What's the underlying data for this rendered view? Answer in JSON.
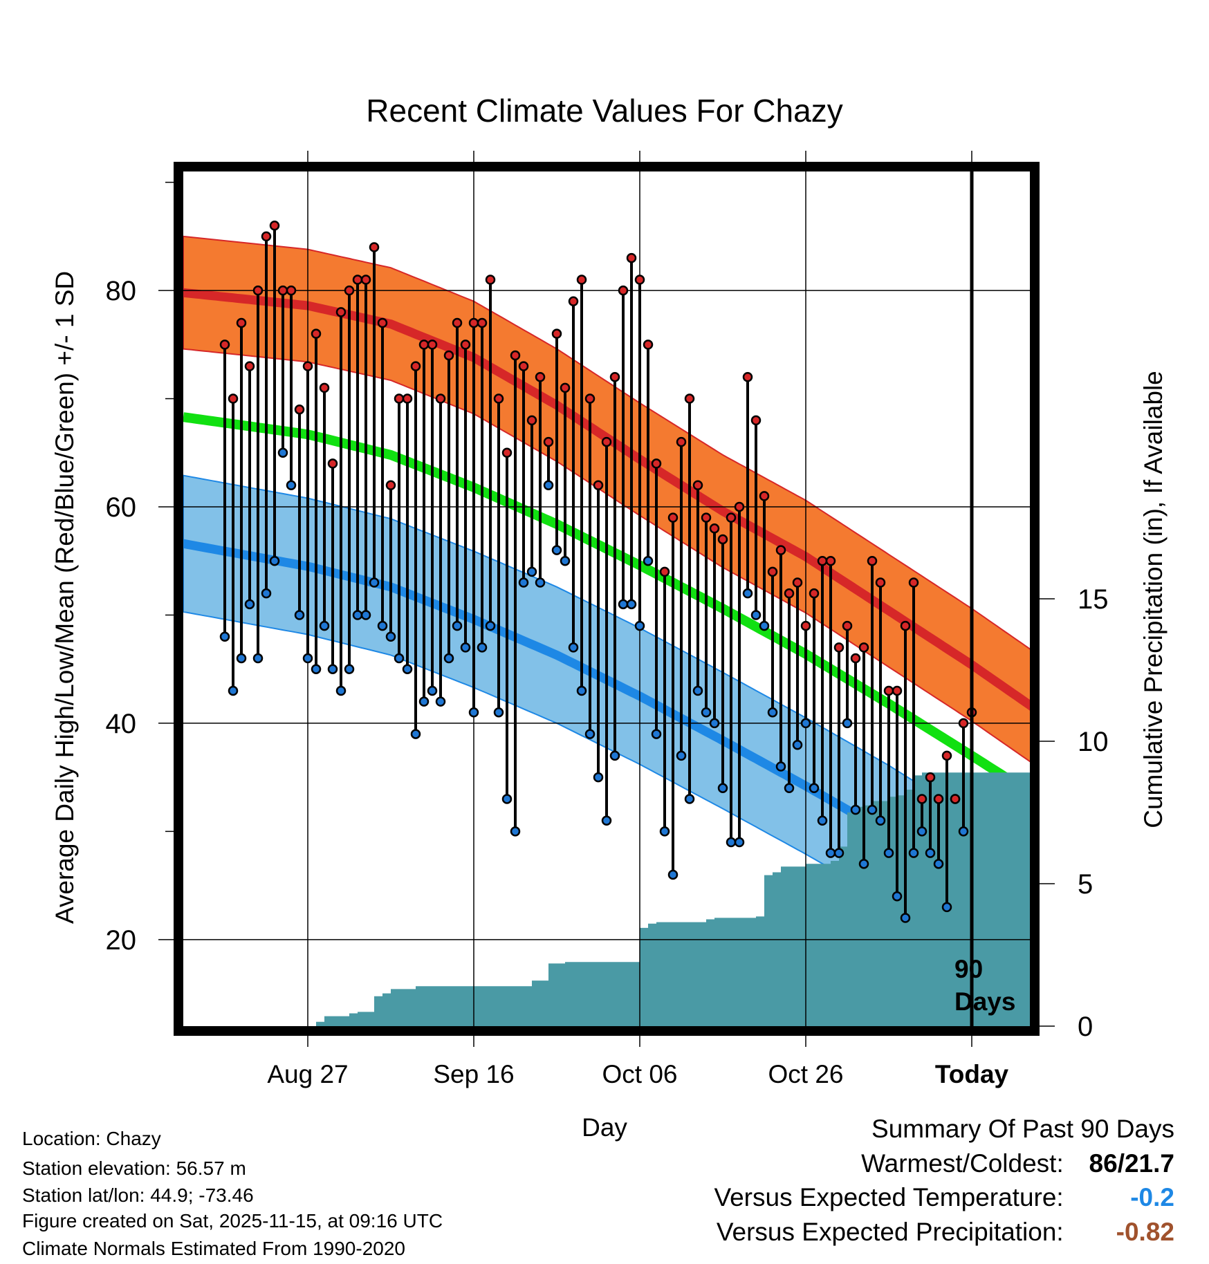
{
  "chart_data": {
    "type": "line",
    "title": "Recent Climate Values For Chazy",
    "xlabel": "Day",
    "ylabel_left": "Average Daily High/Low/Mean (Red/Blue/Green) +/- 1 SD",
    "ylabel_right": "Cumulative Precipitation (in), If Available",
    "ylim": [
      12,
      91
    ],
    "precip_ylim": [
      0,
      30
    ],
    "x_range_days": [
      -95,
      7
    ],
    "x_ticks": [
      {
        "day": -80,
        "label": "Aug 27"
      },
      {
        "day": -60,
        "label": "Sep 16"
      },
      {
        "day": -40,
        "label": "Oct 06"
      },
      {
        "day": -20,
        "label": "Oct 26"
      },
      {
        "day": 0,
        "label": "Today"
      }
    ],
    "y_ticks": [
      20,
      40,
      60,
      80
    ],
    "y_ticks_right": [
      0,
      5,
      10,
      15
    ],
    "marker_label": [
      "90",
      "Days"
    ],
    "normals": {
      "days": [
        -95,
        -80,
        -70,
        -60,
        -50,
        -40,
        -30,
        -20,
        -10,
        0,
        9
      ],
      "high_mean": [
        79.8,
        78.6,
        76.9,
        73.8,
        69.4,
        64.4,
        59.6,
        55.4,
        50.4,
        45.4,
        40.6
      ],
      "high_sd": 5.2,
      "mean": [
        68.3,
        66.7,
        64.8,
        61.8,
        58.4,
        54.6,
        50.6,
        46.4,
        41.8,
        37.0,
        32.6
      ],
      "low_mean": [
        56.6,
        54.5,
        52.6,
        49.6,
        46.3,
        42.5,
        38.4,
        34.2,
        29.8,
        25.0,
        21.0
      ],
      "low_sd": 6.3
    },
    "series": [
      {
        "name": "Daily High",
        "color": "#d62728",
        "values": [
          75,
          70,
          77,
          73,
          80,
          85,
          86,
          80,
          80,
          69,
          73,
          76,
          71,
          64,
          78,
          80,
          81,
          81,
          84,
          77,
          62,
          70,
          70,
          73,
          75,
          75,
          70,
          74,
          77,
          75,
          77,
          77,
          81,
          70,
          65,
          74,
          73,
          68,
          72,
          66,
          76,
          71,
          79,
          81,
          70,
          62,
          66,
          72,
          80,
          83,
          81,
          75,
          64,
          54,
          59,
          66,
          70,
          62,
          59,
          58,
          57,
          59,
          60,
          72,
          68,
          61,
          54,
          56,
          52,
          53,
          49,
          52,
          55,
          55,
          47,
          49,
          46,
          47,
          55,
          53,
          43,
          43,
          49,
          53,
          33,
          35,
          33,
          37,
          33,
          40,
          41
        ]
      },
      {
        "name": "Daily Low",
        "color": "#1f77d4",
        "values": [
          48,
          43,
          46,
          51,
          46,
          52,
          55,
          65,
          62,
          50,
          46,
          45,
          49,
          45,
          43,
          45,
          50,
          50,
          53,
          49,
          48,
          46,
          45,
          39,
          42,
          43,
          42,
          46,
          49,
          47,
          41,
          47,
          49,
          41,
          33,
          30,
          53,
          54,
          53,
          62,
          56,
          55,
          47,
          43,
          39,
          35,
          31,
          37,
          51,
          51,
          49,
          55,
          39,
          30,
          26,
          37,
          33,
          43,
          41,
          40,
          34,
          29,
          29,
          52,
          50,
          49,
          41,
          36,
          34,
          38,
          40,
          34,
          31,
          28,
          28,
          40,
          32,
          27,
          32,
          31,
          28,
          24,
          22,
          28,
          30,
          28,
          27,
          23,
          33,
          30
        ]
      }
    ],
    "precipitation": {
      "name": "Cumulative Precipitation",
      "color": "#4a9aa5",
      "days": [
        -90,
        -79,
        -78,
        -75,
        -74,
        -72,
        -71,
        -70,
        -69,
        -67,
        -66,
        -54,
        -53,
        -52,
        -51,
        -49,
        -48,
        -41,
        -40,
        -39,
        -38,
        -32,
        -31,
        -26,
        -25,
        -24,
        -23,
        -21,
        -20,
        -17,
        -16,
        -15,
        -14,
        -13,
        -12,
        -10,
        -9,
        -8,
        -7,
        -6,
        9
      ],
      "values": [
        0,
        0.15,
        0.35,
        0.45,
        0.5,
        1.05,
        1.15,
        1.3,
        1.3,
        1.4,
        1.4,
        1.4,
        1.6,
        1.6,
        2.2,
        2.25,
        2.25,
        2.25,
        3.45,
        3.6,
        3.65,
        3.75,
        3.8,
        3.85,
        5.3,
        5.4,
        5.6,
        5.6,
        5.7,
        5.8,
        6.3,
        7.5,
        7.7,
        7.75,
        7.9,
        8.05,
        8.1,
        8.3,
        8.8,
        8.9,
        8.9
      ]
    }
  },
  "info": {
    "location": "Location: Chazy",
    "elevation": "Station elevation: 56.57 m",
    "latlon": "Station lat/lon: 44.9; -73.46",
    "created": "Figure created on Sat, 2025-11-15, at 09:16 UTC",
    "normals_period": "Climate Normals Estimated From 1990-2020"
  },
  "summary": {
    "title": "Summary Of Past 90 Days",
    "warm_cold_label": "Warmest/Coldest:",
    "warm_cold_value": "86/21.7",
    "temp_label": "Versus Expected Temperature:",
    "temp_value": "-0.2",
    "temp_color": "#1e88e5",
    "precip_label": "Versus Expected Precipitation:",
    "precip_value": "-0.82",
    "precip_color": "#a0522d"
  }
}
